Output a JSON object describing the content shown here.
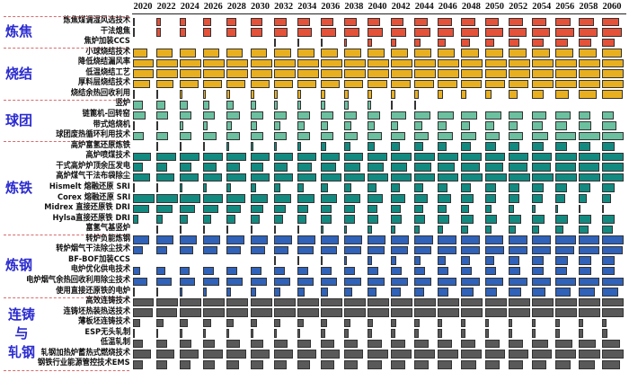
{
  "chart_data": {
    "type": "bar",
    "title": "",
    "xlabel": "",
    "ylabel": "",
    "layout": "grid of horizontal bars per year column (bar length = relative adoption level, 0-1)",
    "years": [
      "2020",
      "2022",
      "2024",
      "2026",
      "2028",
      "2030",
      "2032",
      "2034",
      "2036",
      "2038",
      "2040",
      "2042",
      "2044",
      "2046",
      "2048",
      "2050",
      "2052",
      "2054",
      "2056",
      "2058",
      "2060"
    ],
    "groups": [
      {
        "name": "炼焦",
        "color": "#e4523a",
        "rows": [
          {
            "label": "炼焦煤调湿风选技术",
            "values": [
              0.1,
              0.2,
              0.3,
              0.35,
              0.45,
              0.55,
              0.6,
              0.6,
              0.6,
              0.6,
              0.6,
              0.6,
              0.6,
              0.65,
              0.65,
              0.65,
              0.7,
              0.7,
              0.7,
              0.7,
              0.8
            ]
          },
          {
            "label": "干法熄焦",
            "values": [
              0.1,
              0.2,
              0.3,
              0.35,
              0.45,
              0.55,
              0.65,
              0.7,
              0.7,
              0.7,
              0.7,
              0.7,
              0.75,
              0.75,
              0.8,
              0.85,
              0.85,
              0.85,
              0.9,
              0.9,
              0.9
            ]
          },
          {
            "label": "焦炉加装CCS",
            "values": [
              0,
              0,
              0,
              0,
              0,
              0,
              0.03,
              0.05,
              0.1,
              0.15,
              0.2,
              0.25,
              0.3,
              0.35,
              0.4,
              0.45,
              0.5,
              0.55,
              0.6,
              0.6,
              0.6
            ]
          }
        ]
      },
      {
        "name": "烧结",
        "color": "#e8b020",
        "rows": [
          {
            "label": "小球烧结技术",
            "values": [
              0.65,
              0.75,
              0.75,
              0.75,
              0.75,
              0.75,
              0.8,
              0.8,
              0.8,
              0.8,
              0.8,
              0.8,
              0.8,
              0.8,
              0.8,
              0.85,
              0.85,
              0.85,
              0.85,
              0.85,
              0.9
            ]
          },
          {
            "label": "降低烧结漏风率",
            "values": [
              0.95,
              1,
              1,
              1,
              1,
              1,
              1,
              1,
              1,
              1,
              1,
              1,
              1,
              1,
              1,
              1,
              1,
              1,
              1,
              1,
              1
            ]
          },
          {
            "label": "低温烧结工艺",
            "values": [
              0.95,
              1,
              1,
              1,
              1,
              1,
              1,
              1,
              1,
              1,
              1,
              1,
              1,
              1,
              1,
              1,
              1,
              1,
              1,
              1,
              1
            ]
          },
          {
            "label": "厚料层烧结技术",
            "values": [
              0.8,
              0.8,
              0.85,
              0.85,
              0.85,
              0.9,
              0.9,
              0.9,
              0.9,
              0.9,
              0.9,
              0.9,
              0.9,
              0.9,
              0.95,
              0.95,
              0.95,
              1,
              1,
              1,
              1
            ]
          },
          {
            "label": "烧结余热回收利用",
            "values": [
              0.05,
              0.05,
              0.1,
              0.1,
              0.15,
              0.2,
              0.2,
              0.2,
              0.2,
              0.2,
              0.2,
              0.2,
              0.2,
              0.25,
              0.25,
              0.3,
              0.45,
              0.55,
              0.65,
              0.85,
              0.95
            ]
          }
        ]
      },
      {
        "name": "球团",
        "color": "#6bc0a0",
        "rows": [
          {
            "label": "竖炉",
            "values": [
              0.45,
              0.4,
              0.35,
              0.3,
              0.3,
              0.25,
              0.2,
              0.2,
              0.2,
              0.2,
              0.15,
              0.05,
              0.03,
              0,
              0,
              0,
              0,
              0,
              0,
              0,
              0
            ]
          },
          {
            "label": "链篦机-回转窑",
            "values": [
              0.6,
              0.55,
              0.55,
              0.55,
              0.6,
              0.6,
              0.6,
              0.6,
              0.6,
              0.6,
              0.6,
              0.7,
              0.75,
              0.75,
              0.75,
              0.75,
              0.7,
              0.7,
              0.7,
              0.55,
              0.55
            ]
          },
          {
            "label": "带式焙烧机",
            "values": [
              0.05,
              0.1,
              0.15,
              0.2,
              0.25,
              0.3,
              0.3,
              0.35,
              0.35,
              0.35,
              0.35,
              0.35,
              0.35,
              0.4,
              0.4,
              0.45,
              0.45,
              0.5,
              0.55,
              0.6,
              0.65
            ]
          },
          {
            "label": "球团废热循环利用技术",
            "values": [
              0.5,
              0.55,
              0.55,
              0.6,
              0.6,
              0.6,
              0.6,
              0.6,
              0.6,
              0.65,
              0.65,
              0.65,
              0.65,
              0.7,
              0.7,
              0.7,
              0.7,
              0.75,
              0.95,
              1,
              1
            ]
          }
        ]
      },
      {
        "name": "炼铁",
        "color": "#138a80",
        "rows": [
          {
            "label": "高炉富氢还原炼铁",
            "values": [
              0,
              0.02,
              0.05,
              0.05,
              0.1,
              0.15,
              0.15,
              0.2,
              0.25,
              0.3,
              0.35,
              0.4,
              0.4,
              0.4,
              0.45,
              0.5,
              0.5,
              0.55,
              0.55,
              0.55,
              0.6
            ]
          },
          {
            "label": "高炉喷煤技术",
            "values": [
              0.85,
              0.9,
              0.9,
              0.9,
              0.9,
              0.9,
              0.9,
              0.9,
              0.9,
              0.9,
              0.9,
              0.95,
              0.95,
              0.95,
              0.95,
              0.95,
              0.95,
              0.95,
              1,
              1,
              1
            ]
          },
          {
            "label": "干式高炉炉顶余压发电",
            "values": [
              0.45,
              0.5,
              0.55,
              0.6,
              0.6,
              0.6,
              0.65,
              0.7,
              0.7,
              0.75,
              0.75,
              0.75,
              0.8,
              0.8,
              0.85,
              0.85,
              0.9,
              0.9,
              0.95,
              0.95,
              1
            ]
          },
          {
            "label": "高炉煤气干法布袋除尘",
            "values": [
              0.8,
              0.85,
              0.85,
              0.85,
              0.9,
              0.9,
              0.9,
              0.9,
              0.95,
              0.95,
              0.95,
              0.95,
              0.95,
              0.95,
              1,
              1,
              1,
              1,
              1,
              1,
              1
            ]
          },
          {
            "label": "Hismelt 熔融还原 SRI",
            "values": [
              0.03,
              0.05,
              0.1,
              0.15,
              0.2,
              0.25,
              0.3,
              0.3,
              0.35,
              0.35,
              0.4,
              0.4,
              0.4,
              0.45,
              0.45,
              0.5,
              0.5,
              0.55,
              0.55,
              0.55,
              0.6
            ]
          },
          {
            "label": "Corex 熔融还原 SRI",
            "values": [
              1,
              1,
              0.95,
              0.9,
              0.85,
              0.8,
              0.8,
              0.8,
              0.75,
              0.75,
              0.7,
              0.65,
              0.6,
              0.6,
              0.55,
              0.5,
              0.5,
              0.5,
              0.45,
              0.4,
              0.4
            ]
          },
          {
            "label": "Midrex 直接还原铁 DRI",
            "values": [
              0.75,
              0.75,
              0.7,
              0.7,
              0.65,
              0.6,
              0.55,
              0.5,
              0.5,
              0.5,
              0.45,
              0.45,
              0.4,
              0.4,
              0.35,
              0.3,
              0.25,
              0.2,
              0.15,
              0.1,
              0.05
            ]
          },
          {
            "label": "Hylsa直接还原铁 DRI",
            "values": [
              0.25,
              0.3,
              0.35,
              0.35,
              0.4,
              0.45,
              0.45,
              0.45,
              0.5,
              0.5,
              0.5,
              0.5,
              0.5,
              0.55,
              0.55,
              0.55,
              0.6,
              0.6,
              0.6,
              0.6,
              0.6
            ]
          },
          {
            "label": "富氢气基竖炉",
            "values": [
              0,
              0.02,
              0.03,
              0.05,
              0.05,
              0.1,
              0.1,
              0.1,
              0.15,
              0.15,
              0.2,
              0.2,
              0.25,
              0.25,
              0.3,
              0.3,
              0.35,
              0.35,
              0.4,
              0.45,
              0.5
            ]
          }
        ]
      },
      {
        "name": "炼钢",
        "color": "#2f62b8",
        "rows": [
          {
            "label": "转炉负能炼钢",
            "values": [
              0.75,
              0.8,
              0.8,
              0.8,
              0.8,
              0.8,
              0.85,
              0.85,
              0.85,
              0.85,
              0.85,
              0.85,
              0.85,
              0.85,
              0.85,
              0.85,
              0.9,
              0.9,
              0.95,
              0.95,
              1
            ]
          },
          {
            "label": "转炉烟气干法除尘技术",
            "values": [
              0.45,
              0.5,
              0.6,
              0.65,
              0.65,
              0.7,
              0.7,
              0.75,
              0.75,
              0.8,
              0.8,
              0.8,
              0.8,
              0.85,
              0.85,
              0.9,
              0.9,
              0.9,
              0.9,
              0.95,
              0.95
            ]
          },
          {
            "label": "BF-BOF加装CCS",
            "values": [
              0,
              0,
              0,
              0,
              0,
              0,
              0.03,
              0.05,
              0.1,
              0.15,
              0.2,
              0.25,
              0.3,
              0.35,
              0.4,
              0.45,
              0.5,
              0.55,
              0.6,
              0.6,
              0.6
            ]
          },
          {
            "label": "电炉优化供电技术",
            "values": [
              0.35,
              0.4,
              0.45,
              0.5,
              0.5,
              0.5,
              0.5,
              0.5,
              0.5,
              0.5,
              0.5,
              0.5,
              0.5,
              0.5,
              0.5,
              0.5,
              0.55,
              0.55,
              0.55,
              0.6,
              0.6
            ]
          },
          {
            "label": "电炉烟气余热回收利用除尘技术",
            "values": [
              0.65,
              0.7,
              0.7,
              0.75,
              0.75,
              0.75,
              0.75,
              0.75,
              0.75,
              0.8,
              0.8,
              0.8,
              0.8,
              0.85,
              0.85,
              0.85,
              0.9,
              0.9,
              0.95,
              0.95,
              1
            ]
          },
          {
            "label": "使用直接还原铁的电炉",
            "values": [
              0.03,
              0.05,
              0.1,
              0.15,
              0.2,
              0.25,
              0.3,
              0.35,
              0.35,
              0.4,
              0.4,
              0.45,
              0.45,
              0.5,
              0.55,
              0.55,
              0.6,
              0.65,
              0.7,
              0.75,
              0.75
            ]
          }
        ]
      },
      {
        "name": "连铸与轧钢",
        "color": "#595959",
        "rows": [
          {
            "label": "高效连铸技术",
            "values": [
              0.95,
              1,
              1,
              1,
              1,
              1,
              1,
              1,
              1,
              1,
              1,
              1,
              1,
              1,
              1,
              1,
              1,
              1,
              1,
              1,
              1
            ]
          },
          {
            "label": "连铸坯热装热送技术",
            "values": [
              0.9,
              0.95,
              1,
              1,
              1,
              1,
              1,
              1,
              1,
              1,
              1,
              1,
              1,
              1,
              1,
              1,
              1,
              1,
              1,
              1,
              1
            ]
          },
          {
            "label": "薄板坯连铸技术",
            "values": [
              0.35,
              0.35,
              0.35,
              0.35,
              0.3,
              0.3,
              0.3,
              0.3,
              0.3,
              0.3,
              0.25,
              0.25,
              0.25,
              0.2,
              0.2,
              0.2,
              0.2,
              0.2,
              0.2,
              0.2,
              0.2
            ]
          },
          {
            "label": "ESP无头轧制",
            "values": [
              0.03,
              0.05,
              0.1,
              0.1,
              0.1,
              0.15,
              0.15,
              0.15,
              0.2,
              0.2,
              0.2,
              0.2,
              0.2,
              0.2,
              0.2,
              0.2,
              0.2,
              0.2,
              0.2,
              0.2,
              0.25
            ]
          },
          {
            "label": "低温轧制",
            "values": [
              0.45,
              0.5,
              0.55,
              0.55,
              0.6,
              0.6,
              0.65,
              0.65,
              0.65,
              0.65,
              0.65,
              0.65,
              0.65,
              0.65,
              0.65,
              0.7,
              0.7,
              0.75,
              0.8,
              0.8,
              0.85
            ]
          },
          {
            "label": "轧钢加热炉蓄热式燃烧技术",
            "values": [
              0.85,
              0.85,
              0.85,
              0.9,
              0.9,
              0.9,
              0.9,
              0.9,
              0.9,
              0.9,
              0.95,
              0.95,
              0.95,
              0.95,
              0.95,
              0.95,
              0.95,
              0.95,
              0.95,
              1,
              1
            ]
          },
          {
            "label": "钢铁行业能源管控技术EMS",
            "values": [
              0.45,
              0.5,
              0.5,
              0.55,
              0.55,
              0.6,
              0.6,
              0.6,
              0.65,
              0.65,
              0.65,
              0.65,
              0.65,
              0.65,
              0.7,
              0.7,
              0.7,
              0.7,
              0.7,
              0.75,
              0.85
            ]
          }
        ]
      }
    ],
    "grid": false,
    "legend": "none"
  }
}
